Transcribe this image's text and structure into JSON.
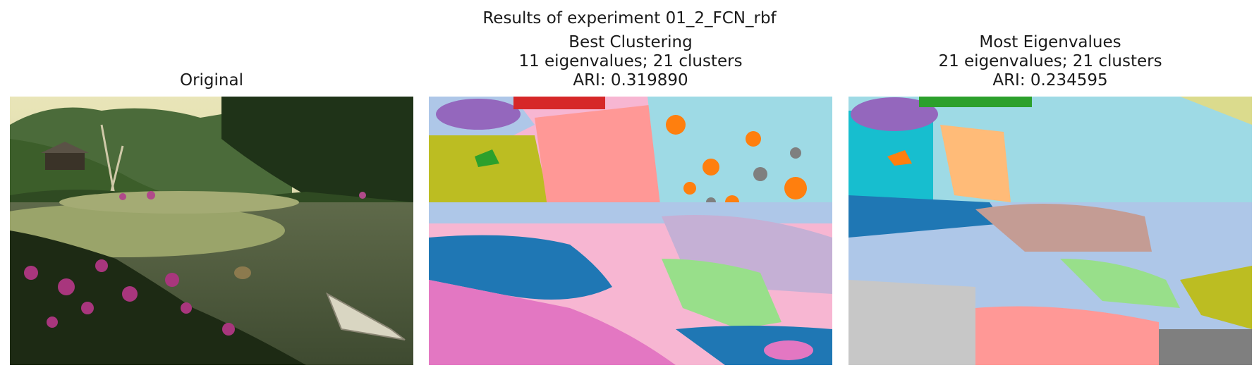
{
  "figure": {
    "suptitle": "Results of experiment 01_2_FCN_rbf",
    "panels": [
      {
        "title_lines": [
          "Original"
        ]
      },
      {
        "title_lines": [
          "Best Clustering",
          "11 eigenvalues; 21 clusters",
          "ARI: 0.319890"
        ]
      },
      {
        "title_lines": [
          "Most Eigenvalues",
          "21 eigenvalues; 21 clusters",
          "ARI: 0.234595"
        ]
      }
    ]
  }
}
